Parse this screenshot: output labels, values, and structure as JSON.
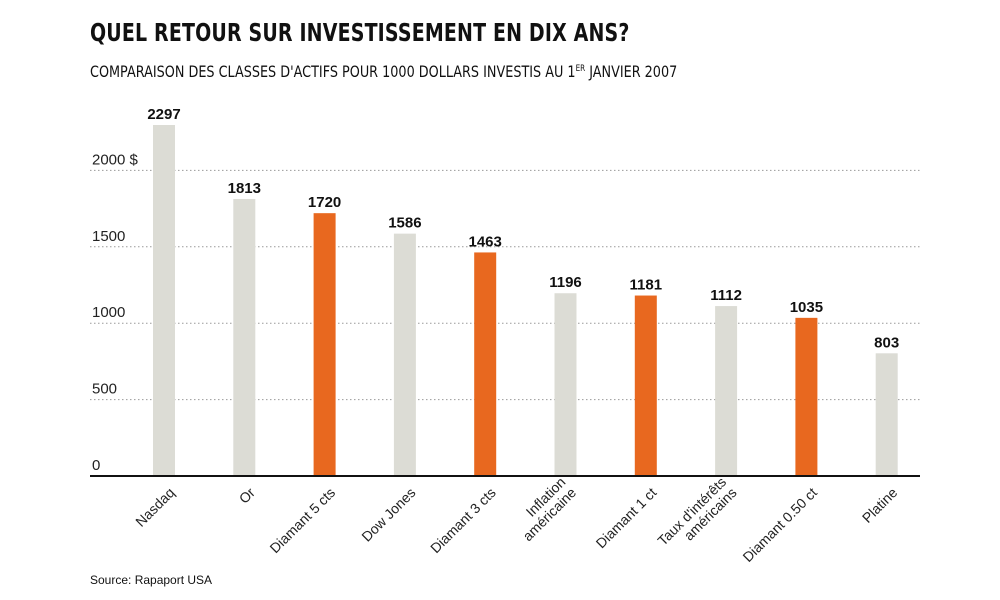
{
  "title": "QUEL RETOUR SUR INVESTISSEMENT EN DIX ANS?",
  "subtitle_main": "COMPARAISON DES CLASSES D'ACTIFS POUR 1000 DOLLARS INVESTIS AU 1",
  "subtitle_sup": "ER",
  "subtitle_end": " JANVIER 2007",
  "source": "Source: Rapaport USA",
  "colors": {
    "gray": "#dcdcd5",
    "orange": "#e8681f",
    "axis": "#111111",
    "grid": "#9a9a9a"
  },
  "chart_data": {
    "type": "bar",
    "title": "QUEL RETOUR SUR INVESTISSEMENT EN DIX ANS?",
    "subtitle": "COMPARAISON DES CLASSES D'ACTIFS POUR 1000 DOLLARS INVESTIS AU 1ER JANVIER 2007",
    "categories": [
      [
        "Nasdaq"
      ],
      [
        "Or"
      ],
      [
        "Diamant 5 cts"
      ],
      [
        "Dow Jones"
      ],
      [
        "Diamant 3 cts"
      ],
      [
        "Inflation",
        "américaine"
      ],
      [
        "Diamant 1 ct"
      ],
      [
        "Taux d'intérêts",
        "américains"
      ],
      [
        "Diamant 0.50 ct"
      ],
      [
        "Platine"
      ]
    ],
    "values": [
      2297,
      1813,
      1720,
      1586,
      1463,
      1196,
      1181,
      1112,
      1035,
      803
    ],
    "highlight": [
      false,
      false,
      true,
      false,
      true,
      false,
      true,
      false,
      true,
      false
    ],
    "yticks": [
      0,
      500,
      1000,
      1500,
      2000
    ],
    "ytick_labels": [
      "0",
      "500",
      "1000",
      "1500",
      "2000 $"
    ],
    "ylim": [
      0,
      2297
    ],
    "grid": "dotted horizontal"
  }
}
